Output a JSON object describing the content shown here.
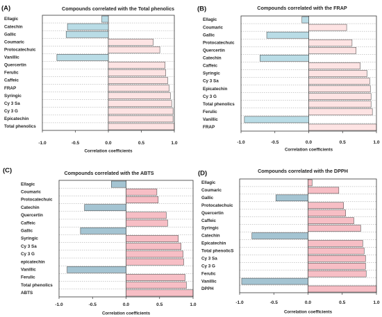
{
  "chart_data": [
    {
      "type": "bar",
      "orientation": "horizontal",
      "panel_label": "(A)",
      "title": "Compounds correlated with the Total phenolics",
      "xlabel": "Correlation coefficients",
      "xlim": [
        -1.0,
        1.0
      ],
      "xticks": [
        "-1.0",
        "-0.5",
        "0.0",
        "0.5",
        "1.0"
      ],
      "categories": [
        "Ellagic",
        "Catechin",
        "Gallic",
        "Coumaric",
        "Protocatechuic",
        "Vanillic",
        "Quercertin",
        "Ferulic",
        "Caffeic",
        "FRAP",
        "Syringic",
        "Cy 3 Sa",
        "Cy 3 G",
        "Epicatechin",
        "Total phenolics"
      ],
      "values": [
        -0.1,
        -0.62,
        -0.64,
        0.68,
        0.78,
        -0.78,
        0.86,
        0.87,
        0.9,
        0.92,
        0.94,
        0.96,
        0.98,
        0.98,
        1.0
      ],
      "colors": {
        "positive": "#fde3e3",
        "negative": "#b9dce6"
      }
    },
    {
      "type": "bar",
      "orientation": "horizontal",
      "panel_label": "(B)",
      "title": "Compounds correlated with the FRAP",
      "xlabel": "Correlation coefficients",
      "xlim": [
        -1.0,
        1.0
      ],
      "xticks": [
        "-1.0",
        "-0.5",
        "0.0",
        "0.5",
        "1.0"
      ],
      "categories": [
        "Ellagic",
        "Coumaric",
        "Gallic",
        "Protocatechuic",
        "Quercertin",
        "Catechin",
        "Caffeic",
        "Syringic",
        "Cy 3 Sa",
        "Epicatechin",
        "Cy 3 G",
        "Total phenolics",
        "Ferulic",
        "Vanillic",
        "FRAP"
      ],
      "values": [
        -0.1,
        0.56,
        -0.62,
        0.64,
        0.7,
        -0.72,
        0.76,
        0.86,
        0.9,
        0.91,
        0.92,
        0.92,
        0.94,
        -0.95,
        1.0
      ],
      "colors": {
        "positive": "#fde3e3",
        "negative": "#b9dce6"
      }
    },
    {
      "type": "bar",
      "orientation": "horizontal",
      "panel_label": "(C)",
      "title": "Compounds correlated with the ABTS",
      "xlabel": "Correlation coefficients",
      "xlim": [
        -1.0,
        1.0
      ],
      "xticks": [
        "-1.0",
        "-0.5",
        "0.0",
        "0.5",
        "1.0"
      ],
      "categories": [
        "Ellagic",
        "Coumaric",
        "Protocatechuic",
        "Catechin",
        "Quercertin",
        "Caffeic",
        "Gallic",
        "Syringic",
        "Cy 3 Sa",
        "Cy 3 G",
        "epicatechin",
        "Vanillic",
        "Ferulic",
        "Total phenolics",
        "ABTS"
      ],
      "values": [
        -0.22,
        0.46,
        0.48,
        -0.62,
        0.6,
        0.62,
        -0.68,
        0.78,
        0.82,
        0.85,
        0.86,
        -0.88,
        0.88,
        0.9,
        1.0
      ],
      "colors": {
        "positive": "#f7bec5",
        "negative": "#a4c4d2"
      }
    },
    {
      "type": "bar",
      "orientation": "horizontal",
      "panel_label": "(D)",
      "title": "Compounds correlated with the DPPH",
      "xlabel": "Correlation coefficients",
      "xlim": [
        -1.0,
        1.0
      ],
      "xticks": [
        "-1.0",
        "-0.5",
        "0.0",
        "0.5",
        "1.0"
      ],
      "categories": [
        "Ellagic",
        "Coumaric",
        "Gallic",
        "Protocatechuic",
        "Quercertin",
        "Caffeic",
        "Syringic",
        "Catechin",
        "Epicatechin",
        "Total phenolicS",
        "Cy 3 Sa",
        "Cy 3 G",
        "Ferulic",
        "Vanillic",
        "DPPH"
      ],
      "values": [
        0.06,
        0.45,
        -0.47,
        0.52,
        0.55,
        0.67,
        0.77,
        -0.82,
        0.8,
        0.82,
        0.84,
        0.84,
        0.85,
        -0.97,
        1.0
      ],
      "colors": {
        "positive": "#f7bec5",
        "negative": "#a4c4d2"
      }
    }
  ]
}
